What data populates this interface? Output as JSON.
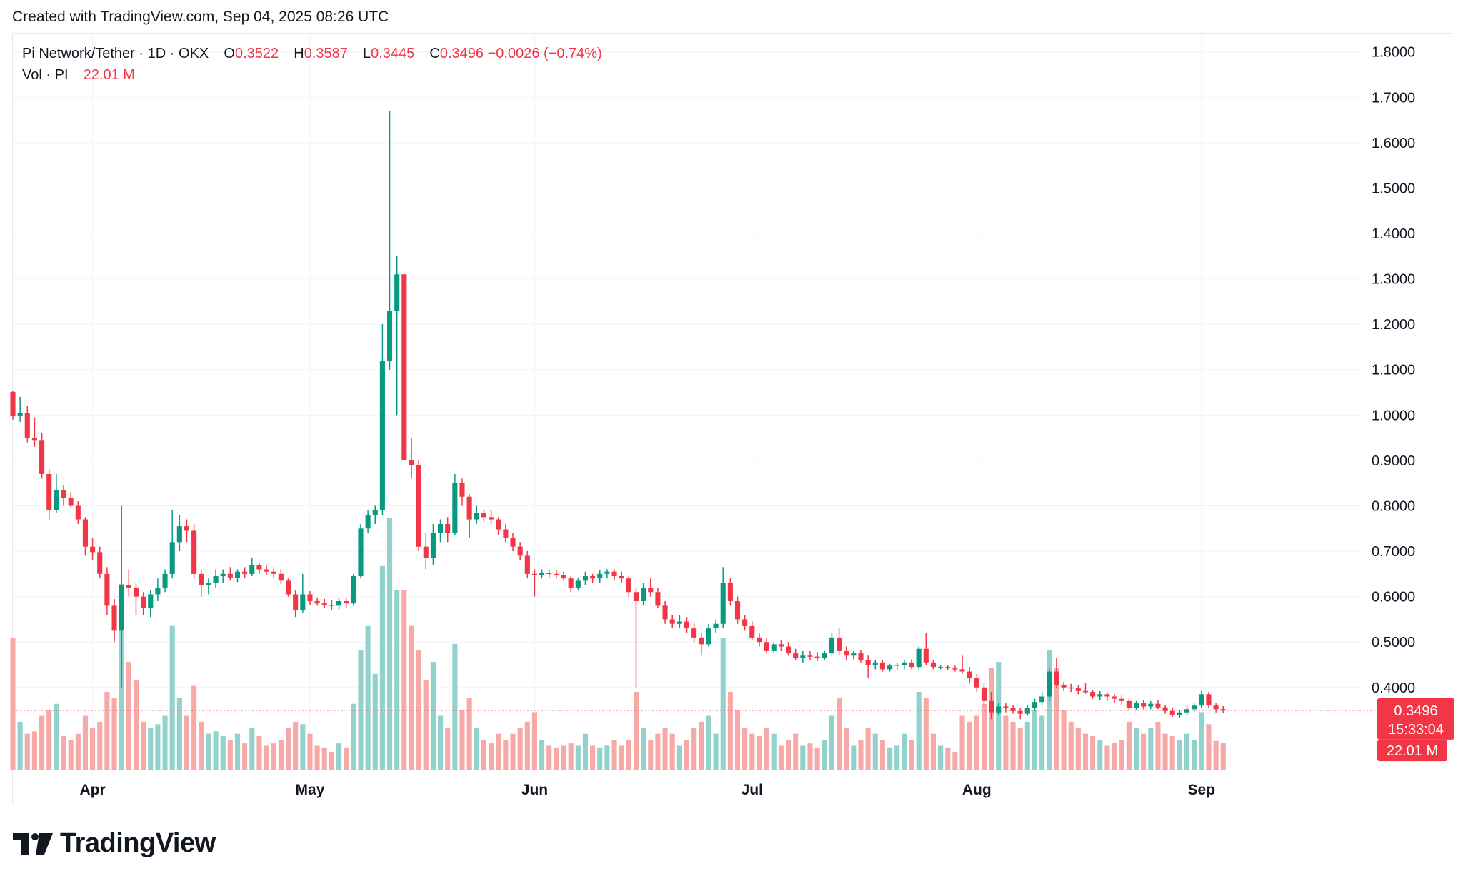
{
  "header": {
    "created_text": "Created with TradingView.com, Sep 04, 2025 08:26 UTC"
  },
  "legend": {
    "symbol": "Pi Network/Tether",
    "interval": "1D",
    "exchange": "OKX",
    "dot": "·",
    "o_label": "O",
    "o_value": "0.3522",
    "h_label": "H",
    "h_value": "0.3587",
    "l_label": "L",
    "l_value": "0.3445",
    "c_label": "C",
    "c_value": "0.3496",
    "change": "−0.0026 (−0.74%)",
    "vol_label": "Vol",
    "vol_symbol": "PI",
    "vol_value": "22.01 M"
  },
  "colors": {
    "up": "#089981",
    "down": "#f23645",
    "vol_up": "#92d2cc",
    "vol_down": "#f7a9a7",
    "text": "#131722",
    "grid": "#f0f3fa"
  },
  "footer": {
    "logo_icon": "tradingview-logo-icon",
    "brand": "TradingView"
  },
  "chart_data": {
    "type": "candlestick",
    "title": "Pi Network/Tether · 1D · OKX",
    "price_ticks": [
      "1.8000",
      "1.7000",
      "1.6000",
      "1.5000",
      "1.4000",
      "1.3000",
      "1.2000",
      "1.1000",
      "1.0000",
      "0.9000",
      "0.8000",
      "0.7000",
      "0.6000",
      "0.5000",
      "0.4000"
    ],
    "ylim": [
      0.31,
      1.82
    ],
    "x_tick_labels": [
      {
        "label": "Apr",
        "date": "2025-04-01"
      },
      {
        "label": "May",
        "date": "2025-05-01"
      },
      {
        "label": "Jun",
        "date": "2025-06-01"
      },
      {
        "label": "Jul",
        "date": "2025-07-01"
      },
      {
        "label": "Aug",
        "date": "2025-08-01"
      },
      {
        "label": "Sep",
        "date": "2025-09-01"
      }
    ],
    "xlim": [
      "2025-03-21",
      "2025-09-23"
    ],
    "last_price_label": "0.3496",
    "countdown_label": "15:33:04",
    "volume_label": "22.01 M",
    "volume_max_m": 155,
    "grid": true,
    "candles": [
      [
        "2025-03-21",
        1.051,
        1.053,
        0.99,
        0.998,
        110
      ],
      [
        "2025-03-22",
        0.998,
        1.04,
        0.985,
        1.005,
        40
      ],
      [
        "2025-03-23",
        1.005,
        1.02,
        0.94,
        0.95,
        30
      ],
      [
        "2025-03-24",
        0.95,
        0.995,
        0.93,
        0.945,
        32
      ],
      [
        "2025-03-25",
        0.945,
        0.96,
        0.86,
        0.87,
        45
      ],
      [
        "2025-03-26",
        0.87,
        0.88,
        0.77,
        0.79,
        50
      ],
      [
        "2025-03-27",
        0.79,
        0.87,
        0.785,
        0.835,
        55
      ],
      [
        "2025-03-28",
        0.835,
        0.845,
        0.8,
        0.818,
        28
      ],
      [
        "2025-03-29",
        0.818,
        0.83,
        0.795,
        0.8,
        25
      ],
      [
        "2025-03-30",
        0.8,
        0.81,
        0.76,
        0.77,
        30
      ],
      [
        "2025-03-31",
        0.77,
        0.775,
        0.69,
        0.71,
        45
      ],
      [
        "2025-04-01",
        0.71,
        0.73,
        0.68,
        0.698,
        35
      ],
      [
        "2025-04-02",
        0.698,
        0.71,
        0.64,
        0.65,
        40
      ],
      [
        "2025-04-03",
        0.65,
        0.665,
        0.56,
        0.58,
        65
      ],
      [
        "2025-04-04",
        0.58,
        0.595,
        0.5,
        0.525,
        60
      ],
      [
        "2025-04-05",
        0.525,
        0.8,
        0.4,
        0.625,
        155
      ],
      [
        "2025-04-06",
        0.625,
        0.66,
        0.6,
        0.62,
        90
      ],
      [
        "2025-04-07",
        0.62,
        0.63,
        0.56,
        0.6,
        75
      ],
      [
        "2025-04-08",
        0.6,
        0.61,
        0.56,
        0.575,
        40
      ],
      [
        "2025-04-09",
        0.575,
        0.615,
        0.555,
        0.605,
        35
      ],
      [
        "2025-04-10",
        0.605,
        0.64,
        0.59,
        0.62,
        38
      ],
      [
        "2025-04-11",
        0.62,
        0.66,
        0.61,
        0.65,
        45
      ],
      [
        "2025-04-12",
        0.65,
        0.79,
        0.64,
        0.72,
        120
      ],
      [
        "2025-04-13",
        0.72,
        0.78,
        0.7,
        0.755,
        60
      ],
      [
        "2025-04-14",
        0.755,
        0.77,
        0.72,
        0.745,
        45
      ],
      [
        "2025-04-15",
        0.745,
        0.76,
        0.64,
        0.65,
        70
      ],
      [
        "2025-04-16",
        0.65,
        0.66,
        0.6,
        0.625,
        40
      ],
      [
        "2025-04-17",
        0.625,
        0.64,
        0.605,
        0.63,
        30
      ],
      [
        "2025-04-18",
        0.63,
        0.66,
        0.62,
        0.645,
        32
      ],
      [
        "2025-04-19",
        0.645,
        0.66,
        0.63,
        0.65,
        28
      ],
      [
        "2025-04-20",
        0.65,
        0.665,
        0.635,
        0.642,
        25
      ],
      [
        "2025-04-21",
        0.642,
        0.66,
        0.632,
        0.655,
        30
      ],
      [
        "2025-04-22",
        0.655,
        0.665,
        0.64,
        0.65,
        22
      ],
      [
        "2025-04-23",
        0.65,
        0.685,
        0.645,
        0.67,
        35
      ],
      [
        "2025-04-24",
        0.67,
        0.675,
        0.65,
        0.66,
        28
      ],
      [
        "2025-04-25",
        0.66,
        0.668,
        0.648,
        0.655,
        20
      ],
      [
        "2025-04-26",
        0.655,
        0.665,
        0.64,
        0.65,
        22
      ],
      [
        "2025-04-27",
        0.65,
        0.66,
        0.628,
        0.635,
        25
      ],
      [
        "2025-04-28",
        0.635,
        0.64,
        0.6,
        0.605,
        35
      ],
      [
        "2025-04-29",
        0.605,
        0.615,
        0.555,
        0.57,
        40
      ],
      [
        "2025-04-30",
        0.57,
        0.65,
        0.565,
        0.605,
        38
      ],
      [
        "2025-05-01",
        0.605,
        0.612,
        0.582,
        0.59,
        30
      ],
      [
        "2025-05-02",
        0.59,
        0.598,
        0.58,
        0.585,
        20
      ],
      [
        "2025-05-03",
        0.585,
        0.595,
        0.575,
        0.582,
        18
      ],
      [
        "2025-05-04",
        0.582,
        0.592,
        0.57,
        0.58,
        15
      ],
      [
        "2025-05-05",
        0.58,
        0.598,
        0.572,
        0.59,
        22
      ],
      [
        "2025-05-06",
        0.59,
        0.596,
        0.576,
        0.585,
        18
      ],
      [
        "2025-05-07",
        0.585,
        0.65,
        0.58,
        0.645,
        55
      ],
      [
        "2025-05-08",
        0.645,
        0.76,
        0.64,
        0.75,
        100
      ],
      [
        "2025-05-09",
        0.75,
        0.79,
        0.74,
        0.78,
        120
      ],
      [
        "2025-05-10",
        0.78,
        0.8,
        0.76,
        0.79,
        80
      ],
      [
        "2025-05-11",
        0.79,
        1.2,
        0.78,
        1.12,
        170
      ],
      [
        "2025-05-12",
        1.12,
        1.67,
        1.1,
        1.23,
        210
      ],
      [
        "2025-05-13",
        1.23,
        1.35,
        1.0,
        1.31,
        150
      ],
      [
        "2025-05-14",
        1.31,
        1.31,
        0.9,
        0.9,
        150
      ],
      [
        "2025-05-15",
        0.9,
        0.95,
        0.86,
        0.89,
        120
      ],
      [
        "2025-05-16",
        0.89,
        0.9,
        0.7,
        0.71,
        100
      ],
      [
        "2025-05-17",
        0.71,
        0.74,
        0.66,
        0.685,
        75
      ],
      [
        "2025-05-18",
        0.685,
        0.76,
        0.67,
        0.74,
        90
      ],
      [
        "2025-05-19",
        0.74,
        0.77,
        0.72,
        0.76,
        45
      ],
      [
        "2025-05-20",
        0.76,
        0.775,
        0.72,
        0.74,
        35
      ],
      [
        "2025-05-21",
        0.74,
        0.87,
        0.735,
        0.85,
        105
      ],
      [
        "2025-05-22",
        0.85,
        0.86,
        0.8,
        0.82,
        50
      ],
      [
        "2025-05-23",
        0.82,
        0.825,
        0.73,
        0.77,
        60
      ],
      [
        "2025-05-24",
        0.77,
        0.8,
        0.76,
        0.785,
        35
      ],
      [
        "2025-05-25",
        0.785,
        0.79,
        0.765,
        0.775,
        25
      ],
      [
        "2025-05-26",
        0.775,
        0.79,
        0.76,
        0.77,
        22
      ],
      [
        "2025-05-27",
        0.77,
        0.775,
        0.735,
        0.748,
        30
      ],
      [
        "2025-05-28",
        0.748,
        0.76,
        0.72,
        0.73,
        25
      ],
      [
        "2025-05-29",
        0.73,
        0.74,
        0.7,
        0.71,
        30
      ],
      [
        "2025-05-30",
        0.71,
        0.72,
        0.68,
        0.69,
        35
      ],
      [
        "2025-05-31",
        0.69,
        0.7,
        0.64,
        0.65,
        40
      ],
      [
        "2025-06-01",
        0.65,
        0.66,
        0.6,
        0.648,
        48
      ],
      [
        "2025-06-02",
        0.648,
        0.66,
        0.64,
        0.652,
        25
      ],
      [
        "2025-06-03",
        0.652,
        0.658,
        0.642,
        0.65,
        20
      ],
      [
        "2025-06-04",
        0.65,
        0.66,
        0.64,
        0.648,
        18
      ],
      [
        "2025-06-05",
        0.648,
        0.655,
        0.635,
        0.64,
        20
      ],
      [
        "2025-06-06",
        0.64,
        0.645,
        0.61,
        0.62,
        22
      ],
      [
        "2025-06-07",
        0.62,
        0.64,
        0.615,
        0.635,
        20
      ],
      [
        "2025-06-08",
        0.635,
        0.655,
        0.625,
        0.645,
        30
      ],
      [
        "2025-06-09",
        0.645,
        0.65,
        0.63,
        0.64,
        20
      ],
      [
        "2025-06-10",
        0.64,
        0.658,
        0.63,
        0.65,
        18
      ],
      [
        "2025-06-11",
        0.65,
        0.66,
        0.64,
        0.655,
        20
      ],
      [
        "2025-06-12",
        0.655,
        0.66,
        0.635,
        0.645,
        25
      ],
      [
        "2025-06-13",
        0.645,
        0.655,
        0.63,
        0.64,
        20
      ],
      [
        "2025-06-14",
        0.64,
        0.645,
        0.6,
        0.61,
        25
      ],
      [
        "2025-06-15",
        0.61,
        0.62,
        0.4,
        0.59,
        65
      ],
      [
        "2025-06-16",
        0.59,
        0.63,
        0.58,
        0.62,
        35
      ],
      [
        "2025-06-17",
        0.62,
        0.64,
        0.6,
        0.61,
        25
      ],
      [
        "2025-06-18",
        0.61,
        0.62,
        0.575,
        0.58,
        30
      ],
      [
        "2025-06-19",
        0.58,
        0.59,
        0.54,
        0.55,
        35
      ],
      [
        "2025-06-20",
        0.55,
        0.56,
        0.53,
        0.54,
        30
      ],
      [
        "2025-06-21",
        0.54,
        0.56,
        0.53,
        0.545,
        20
      ],
      [
        "2025-06-22",
        0.545,
        0.555,
        0.52,
        0.53,
        25
      ],
      [
        "2025-06-23",
        0.53,
        0.54,
        0.5,
        0.51,
        35
      ],
      [
        "2025-06-24",
        0.51,
        0.52,
        0.47,
        0.495,
        40
      ],
      [
        "2025-06-25",
        0.495,
        0.54,
        0.49,
        0.53,
        45
      ],
      [
        "2025-06-26",
        0.53,
        0.55,
        0.52,
        0.54,
        30
      ],
      [
        "2025-06-27",
        0.54,
        0.665,
        0.53,
        0.63,
        110
      ],
      [
        "2025-06-28",
        0.63,
        0.64,
        0.58,
        0.59,
        65
      ],
      [
        "2025-06-29",
        0.59,
        0.6,
        0.54,
        0.55,
        50
      ],
      [
        "2025-06-30",
        0.55,
        0.56,
        0.525,
        0.535,
        35
      ],
      [
        "2025-07-01",
        0.535,
        0.545,
        0.505,
        0.51,
        30
      ],
      [
        "2025-07-02",
        0.51,
        0.52,
        0.49,
        0.5,
        28
      ],
      [
        "2025-07-03",
        0.5,
        0.51,
        0.475,
        0.48,
        35
      ],
      [
        "2025-07-04",
        0.48,
        0.5,
        0.475,
        0.495,
        30
      ],
      [
        "2025-07-05",
        0.495,
        0.505,
        0.48,
        0.49,
        20
      ],
      [
        "2025-07-06",
        0.49,
        0.5,
        0.47,
        0.475,
        25
      ],
      [
        "2025-07-07",
        0.475,
        0.485,
        0.46,
        0.465,
        30
      ],
      [
        "2025-07-08",
        0.465,
        0.48,
        0.455,
        0.47,
        20
      ],
      [
        "2025-07-09",
        0.47,
        0.48,
        0.46,
        0.468,
        22
      ],
      [
        "2025-07-10",
        0.468,
        0.478,
        0.458,
        0.465,
        18
      ],
      [
        "2025-07-11",
        0.465,
        0.48,
        0.46,
        0.475,
        25
      ],
      [
        "2025-07-12",
        0.475,
        0.52,
        0.47,
        0.51,
        45
      ],
      [
        "2025-07-13",
        0.51,
        0.53,
        0.47,
        0.48,
        60
      ],
      [
        "2025-07-14",
        0.48,
        0.49,
        0.46,
        0.47,
        35
      ],
      [
        "2025-07-15",
        0.47,
        0.48,
        0.462,
        0.475,
        20
      ],
      [
        "2025-07-16",
        0.475,
        0.482,
        0.455,
        0.46,
        25
      ],
      [
        "2025-07-17",
        0.46,
        0.47,
        0.42,
        0.45,
        35
      ],
      [
        "2025-07-18",
        0.45,
        0.46,
        0.44,
        0.455,
        30
      ],
      [
        "2025-07-19",
        0.455,
        0.46,
        0.435,
        0.44,
        25
      ],
      [
        "2025-07-20",
        0.44,
        0.452,
        0.435,
        0.448,
        18
      ],
      [
        "2025-07-21",
        0.448,
        0.455,
        0.438,
        0.45,
        20
      ],
      [
        "2025-07-22",
        0.45,
        0.46,
        0.44,
        0.455,
        30
      ],
      [
        "2025-07-23",
        0.455,
        0.462,
        0.44,
        0.445,
        25
      ],
      [
        "2025-07-24",
        0.445,
        0.49,
        0.44,
        0.485,
        65
      ],
      [
        "2025-07-25",
        0.485,
        0.52,
        0.45,
        0.455,
        60
      ],
      [
        "2025-07-26",
        0.455,
        0.46,
        0.44,
        0.445,
        30
      ],
      [
        "2025-07-27",
        0.445,
        0.45,
        0.44,
        0.445,
        20
      ],
      [
        "2025-07-28",
        0.445,
        0.45,
        0.438,
        0.442,
        18
      ],
      [
        "2025-07-29",
        0.442,
        0.448,
        0.435,
        0.44,
        15
      ],
      [
        "2025-07-30",
        0.44,
        0.47,
        0.43,
        0.435,
        45
      ],
      [
        "2025-07-31",
        0.435,
        0.445,
        0.41,
        0.42,
        40
      ],
      [
        "2025-08-01",
        0.42,
        0.43,
        0.39,
        0.4,
        45
      ],
      [
        "2025-08-02",
        0.4,
        0.41,
        0.36,
        0.37,
        55
      ],
      [
        "2025-08-03",
        0.37,
        0.39,
        0.33,
        0.345,
        85
      ],
      [
        "2025-08-04",
        0.345,
        0.365,
        0.34,
        0.358,
        90
      ],
      [
        "2025-08-05",
        0.358,
        0.365,
        0.345,
        0.355,
        45
      ],
      [
        "2025-08-06",
        0.355,
        0.362,
        0.342,
        0.348,
        40
      ],
      [
        "2025-08-07",
        0.348,
        0.355,
        0.33,
        0.342,
        35
      ],
      [
        "2025-08-08",
        0.342,
        0.36,
        0.338,
        0.355,
        40
      ],
      [
        "2025-08-09",
        0.355,
        0.375,
        0.348,
        0.368,
        50
      ],
      [
        "2025-08-10",
        0.368,
        0.39,
        0.36,
        0.38,
        45
      ],
      [
        "2025-08-11",
        0.38,
        0.445,
        0.37,
        0.435,
        100
      ],
      [
        "2025-08-12",
        0.435,
        0.465,
        0.4,
        0.405,
        85
      ],
      [
        "2025-08-13",
        0.405,
        0.412,
        0.392,
        0.4,
        50
      ],
      [
        "2025-08-14",
        0.4,
        0.408,
        0.39,
        0.398,
        40
      ],
      [
        "2025-08-15",
        0.398,
        0.405,
        0.385,
        0.392,
        35
      ],
      [
        "2025-08-16",
        0.392,
        0.41,
        0.386,
        0.39,
        30
      ],
      [
        "2025-08-17",
        0.39,
        0.395,
        0.375,
        0.38,
        28
      ],
      [
        "2025-08-18",
        0.38,
        0.392,
        0.372,
        0.385,
        25
      ],
      [
        "2025-08-19",
        0.385,
        0.39,
        0.37,
        0.38,
        20
      ],
      [
        "2025-08-20",
        0.38,
        0.385,
        0.365,
        0.375,
        22
      ],
      [
        "2025-08-21",
        0.375,
        0.382,
        0.36,
        0.37,
        25
      ],
      [
        "2025-08-22",
        0.37,
        0.375,
        0.35,
        0.355,
        40
      ],
      [
        "2025-08-23",
        0.355,
        0.37,
        0.35,
        0.365,
        35
      ],
      [
        "2025-08-24",
        0.365,
        0.372,
        0.352,
        0.358,
        30
      ],
      [
        "2025-08-25",
        0.358,
        0.37,
        0.352,
        0.364,
        35
      ],
      [
        "2025-08-26",
        0.364,
        0.372,
        0.352,
        0.356,
        40
      ],
      [
        "2025-08-27",
        0.356,
        0.362,
        0.342,
        0.348,
        30
      ],
      [
        "2025-08-28",
        0.348,
        0.356,
        0.335,
        0.34,
        28
      ],
      [
        "2025-08-29",
        0.34,
        0.35,
        0.332,
        0.345,
        25
      ],
      [
        "2025-08-30",
        0.345,
        0.36,
        0.34,
        0.352,
        30
      ],
      [
        "2025-08-31",
        0.352,
        0.365,
        0.346,
        0.36,
        25
      ],
      [
        "2025-09-01",
        0.36,
        0.392,
        0.355,
        0.385,
        48
      ],
      [
        "2025-09-02",
        0.385,
        0.39,
        0.355,
        0.36,
        38
      ],
      [
        "2025-09-03",
        0.36,
        0.365,
        0.345,
        0.352,
        24
      ],
      [
        "2025-09-04",
        0.3522,
        0.3587,
        0.3445,
        0.3496,
        22
      ]
    ]
  }
}
